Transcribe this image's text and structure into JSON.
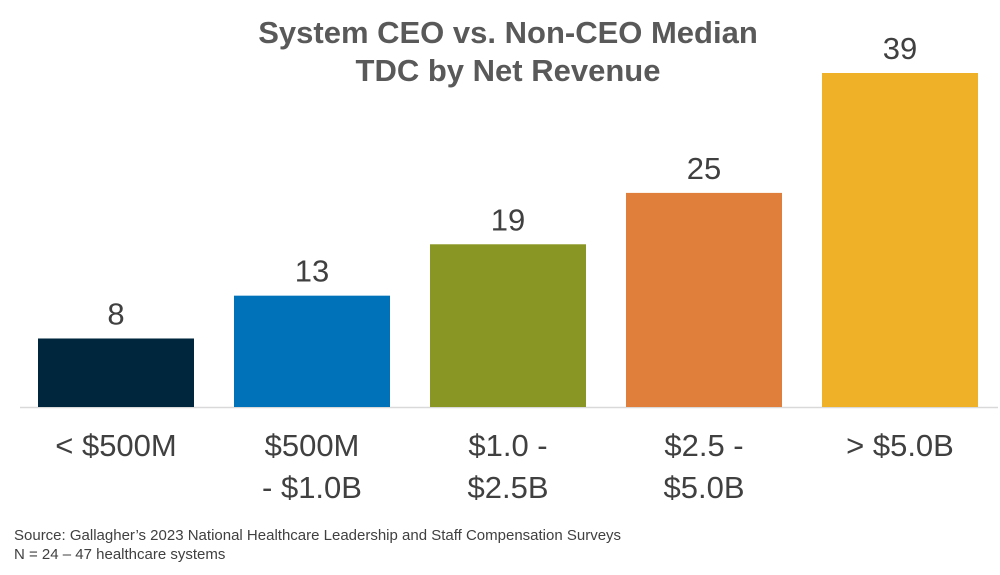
{
  "chart_data": {
    "type": "bar",
    "title_lines": [
      "System CEO vs. Non-CEO Median",
      "TDC by Net Revenue"
    ],
    "categories": [
      [
        "< $500M"
      ],
      [
        "$500M",
        "- $1.0B"
      ],
      [
        "$1.0 -",
        "$2.5B"
      ],
      [
        "$2.5 -",
        "$5.0B"
      ],
      [
        "> $5.0B"
      ]
    ],
    "values": [
      8,
      13,
      19,
      25,
      39
    ],
    "colors": [
      "#00263E",
      "#0072BA",
      "#8A9624",
      "#E07F3B",
      "#EEB127"
    ],
    "ylim": [
      0,
      39
    ],
    "grid": false,
    "legend": "none"
  },
  "footnotes": {
    "source": "Source: Gallagher’s 2023 National Healthcare Leadership and Staff Compensation Surveys",
    "n": "N = 24 – 47 healthcare systems"
  }
}
